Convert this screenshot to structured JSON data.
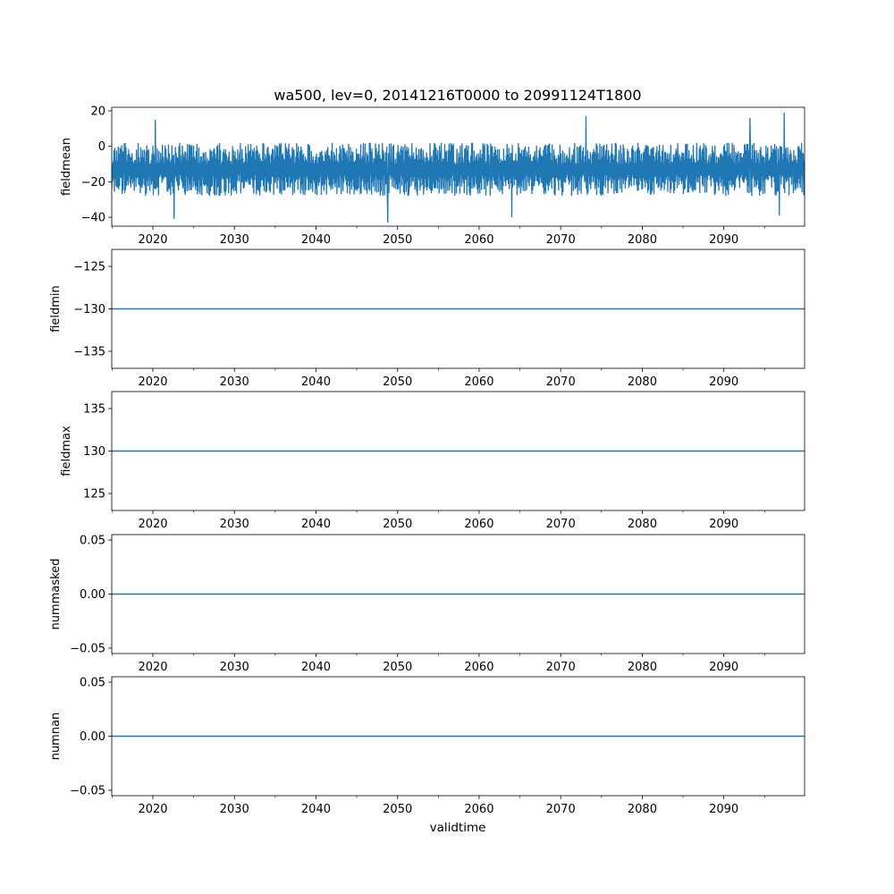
{
  "title": "wa500, lev=0, 20141216T0000 to 20991124T1800",
  "xlabel": "validtime",
  "line_color": "#1f77b4",
  "chart_data": [
    {
      "type": "line",
      "ylabel": "fieldmean",
      "xlim": [
        2014.96,
        2099.9
      ],
      "ylim": [
        -45,
        22
      ],
      "xticks": [
        2020,
        2030,
        2040,
        2050,
        2060,
        2070,
        2080,
        2090
      ],
      "xtick_labels": [
        "2020",
        "2030",
        "2040",
        "2050",
        "2060",
        "2070",
        "2080",
        "2090"
      ],
      "yticks": [
        20,
        0,
        -20,
        -40
      ],
      "ytick_labels": [
        "20",
        "0",
        "−20",
        "−40"
      ],
      "series": [
        {
          "x_range": [
            2014.96,
            2099.9
          ],
          "values_summary": {
            "typical_low": -28,
            "typical_high": 2,
            "min": -43,
            "max": 19
          },
          "extremes": [
            {
              "x": 2020.3,
              "y": 15
            },
            {
              "x": 2022.6,
              "y": -41
            },
            {
              "x": 2048.8,
              "y": -43
            },
            {
              "x": 2064.0,
              "y": -40
            },
            {
              "x": 2073.1,
              "y": 17
            },
            {
              "x": 2093.2,
              "y": 16
            },
            {
              "x": 2096.8,
              "y": -39
            },
            {
              "x": 2097.4,
              "y": 19
            }
          ]
        }
      ]
    },
    {
      "type": "line",
      "ylabel": "fieldmin",
      "xlim": [
        2014.96,
        2099.9
      ],
      "ylim": [
        -137,
        -123
      ],
      "xticks": [
        2020,
        2030,
        2040,
        2050,
        2060,
        2070,
        2080,
        2090
      ],
      "xtick_labels": [
        "2020",
        "2030",
        "2040",
        "2050",
        "2060",
        "2070",
        "2080",
        "2090"
      ],
      "yticks": [
        -125,
        -130,
        -135
      ],
      "ytick_labels": [
        "−125",
        "−130",
        "−135"
      ],
      "series": [
        {
          "x": [
            2014.96,
            2099.9
          ],
          "y": [
            -130,
            -130
          ]
        }
      ]
    },
    {
      "type": "line",
      "ylabel": "fieldmax",
      "xlim": [
        2014.96,
        2099.9
      ],
      "ylim": [
        123,
        137
      ],
      "xticks": [
        2020,
        2030,
        2040,
        2050,
        2060,
        2070,
        2080,
        2090
      ],
      "xtick_labels": [
        "2020",
        "2030",
        "2040",
        "2050",
        "2060",
        "2070",
        "2080",
        "2090"
      ],
      "yticks": [
        135,
        130,
        125
      ],
      "ytick_labels": [
        "135",
        "130",
        "125"
      ],
      "series": [
        {
          "x": [
            2014.96,
            2099.9
          ],
          "y": [
            130,
            130
          ]
        }
      ]
    },
    {
      "type": "line",
      "ylabel": "nummasked",
      "xlim": [
        2014.96,
        2099.9
      ],
      "ylim": [
        -0.055,
        0.055
      ],
      "xticks": [
        2020,
        2030,
        2040,
        2050,
        2060,
        2070,
        2080,
        2090
      ],
      "xtick_labels": [
        "2020",
        "2030",
        "2040",
        "2050",
        "2060",
        "2070",
        "2080",
        "2090"
      ],
      "yticks": [
        0.05,
        0.0,
        -0.05
      ],
      "ytick_labels": [
        "0.05",
        "0.00",
        "−0.05"
      ],
      "series": [
        {
          "x": [
            2014.96,
            2099.9
          ],
          "y": [
            0,
            0
          ]
        }
      ]
    },
    {
      "type": "line",
      "ylabel": "numnan",
      "xlim": [
        2014.96,
        2099.9
      ],
      "ylim": [
        -0.055,
        0.055
      ],
      "xticks": [
        2020,
        2030,
        2040,
        2050,
        2060,
        2070,
        2080,
        2090
      ],
      "xtick_labels": [
        "2020",
        "2030",
        "2040",
        "2050",
        "2060",
        "2070",
        "2080",
        "2090"
      ],
      "yticks": [
        0.05,
        0.0,
        -0.05
      ],
      "ytick_labels": [
        "0.05",
        "0.00",
        "−0.05"
      ],
      "series": [
        {
          "x": [
            2014.96,
            2099.9
          ],
          "y": [
            0,
            0
          ]
        }
      ]
    }
  ]
}
